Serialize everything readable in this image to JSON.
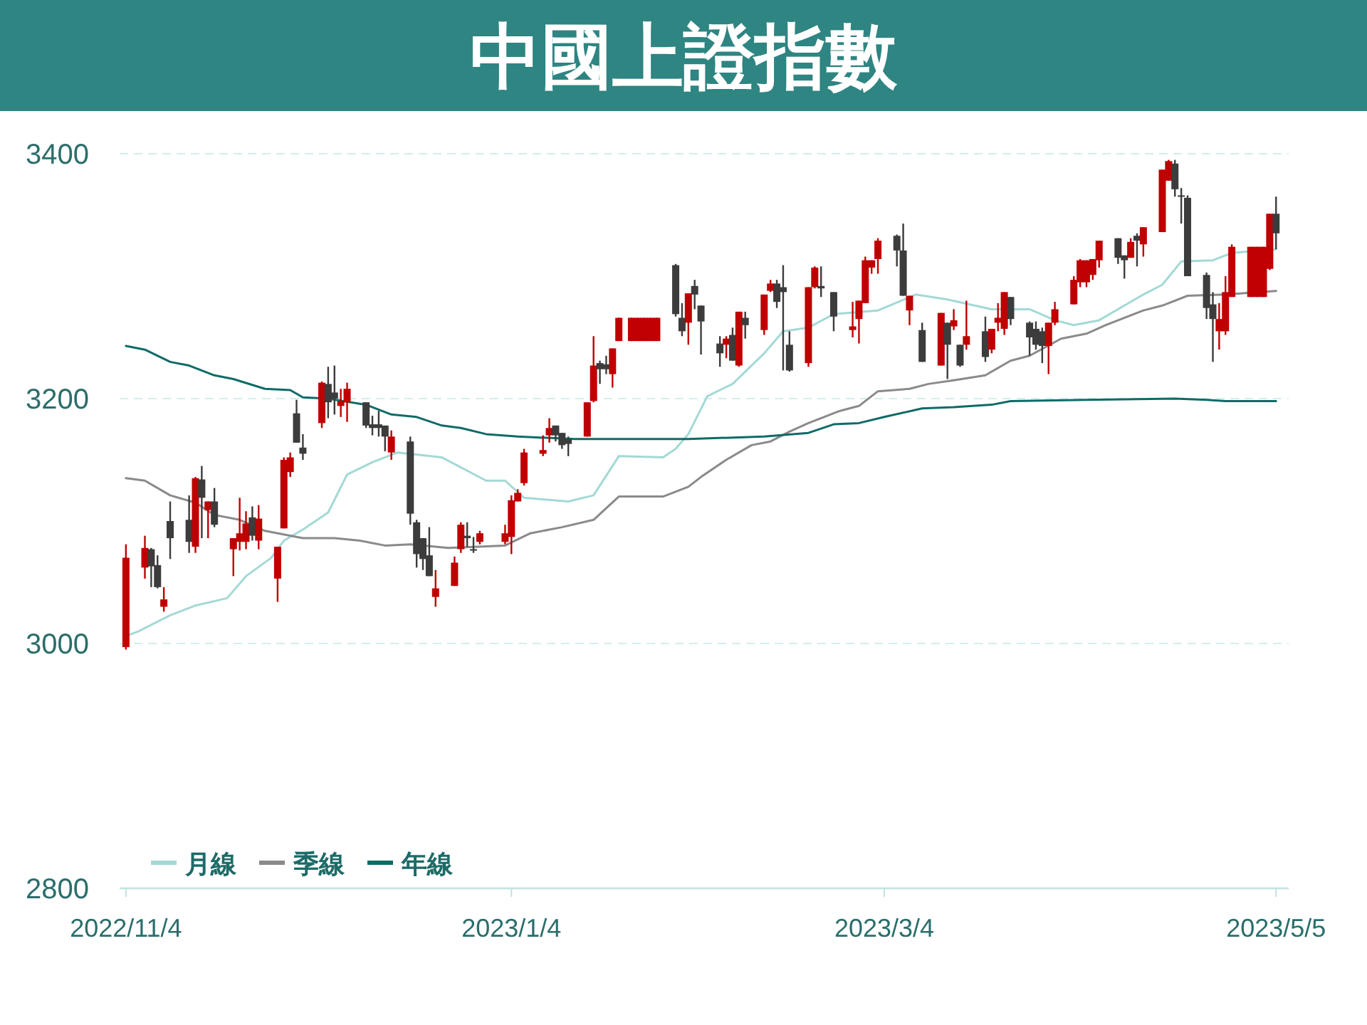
{
  "chart_data": {
    "type": "candlestick",
    "title": "中國上證指數",
    "xlim": [
      "2022-11-03",
      "2023-05-07"
    ],
    "xticks": [
      {
        "value": "2022-11-04",
        "label": "2022/11/4"
      },
      {
        "value": "2023-01-04",
        "label": "2023/1/4"
      },
      {
        "value": "2023-03-04",
        "label": "2023/3/4"
      },
      {
        "value": "2023-05-05",
        "label": "2023/5/5"
      }
    ],
    "ylim": [
      2800,
      3400
    ],
    "yticks": [
      2800,
      3000,
      3200,
      3400
    ],
    "grid": "y",
    "legend": "bottom left",
    "series": [
      {
        "type": "candlestick",
        "x": [
          "2022-11-04",
          "2022-11-07",
          "2022-11-08",
          "2022-11-09",
          "2022-11-10",
          "2022-11-11",
          "2022-11-14",
          "2022-11-15",
          "2022-11-16",
          "2022-11-17",
          "2022-11-18",
          "2022-11-21",
          "2022-11-22",
          "2022-11-23",
          "2022-11-24",
          "2022-11-25",
          "2022-11-28",
          "2022-11-29",
          "2022-11-30",
          "2022-12-01",
          "2022-12-02",
          "2022-12-05",
          "2022-12-06",
          "2022-12-07",
          "2022-12-08",
          "2022-12-09",
          "2022-12-12",
          "2022-12-13",
          "2022-12-14",
          "2022-12-15",
          "2022-12-16",
          "2022-12-19",
          "2022-12-20",
          "2022-12-21",
          "2022-12-22",
          "2022-12-23",
          "2022-12-26",
          "2022-12-27",
          "2022-12-28",
          "2022-12-29",
          "2022-12-30",
          "2023-01-03",
          "2023-01-04",
          "2023-01-05",
          "2023-01-06",
          "2023-01-09",
          "2023-01-10",
          "2023-01-11",
          "2023-01-12",
          "2023-01-13",
          "2023-01-16",
          "2023-01-17",
          "2023-01-18",
          "2023-01-19",
          "2023-01-20",
          "2023-01-21",
          "2023-01-23",
          "2023-01-24",
          "2023-01-25",
          "2023-01-26",
          "2023-01-27",
          "2023-01-30",
          "2023-01-31",
          "2023-02-01",
          "2023-02-02",
          "2023-02-03",
          "2023-02-06",
          "2023-02-07",
          "2023-02-08",
          "2023-02-09",
          "2023-02-10",
          "2023-02-13",
          "2023-02-14",
          "2023-02-15",
          "2023-02-16",
          "2023-02-17",
          "2023-02-20",
          "2023-02-21",
          "2023-02-22",
          "2023-02-24",
          "2023-02-27",
          "2023-02-28",
          "2023-03-01",
          "2023-03-02",
          "2023-03-03",
          "2023-03-06",
          "2023-03-07",
          "2023-03-08",
          "2023-03-10",
          "2023-03-13",
          "2023-03-14",
          "2023-03-15",
          "2023-03-16",
          "2023-03-17",
          "2023-03-20",
          "2023-03-21",
          "2023-03-22",
          "2023-03-23",
          "2023-03-24",
          "2023-03-27",
          "2023-03-28",
          "2023-03-29",
          "2023-03-30",
          "2023-03-31",
          "2023-04-03",
          "2023-04-04",
          "2023-04-05",
          "2023-04-06",
          "2023-04-07",
          "2023-04-10",
          "2023-04-11",
          "2023-04-12",
          "2023-04-13",
          "2023-04-14",
          "2023-04-17",
          "2023-04-18",
          "2023-04-19",
          "2023-04-20",
          "2023-04-21",
          "2023-04-24",
          "2023-04-25",
          "2023-04-26",
          "2023-04-27",
          "2023-04-28",
          "2023-05-01",
          "2023-05-02",
          "2023-05-03",
          "2023-05-04",
          "2023-05-05"
        ],
        "ohlc": [
          [
            2997,
            3081,
            2995,
            3070
          ],
          [
            3062,
            3088,
            3053,
            3078
          ],
          [
            3077,
            3078,
            3046,
            3063
          ],
          [
            3064,
            3072,
            3045,
            3046
          ],
          [
            3030,
            3046,
            3026,
            3036
          ],
          [
            3100,
            3116,
            3069,
            3086
          ],
          [
            3101,
            3121,
            3074,
            3083
          ],
          [
            3079,
            3136,
            3074,
            3135
          ],
          [
            3134,
            3145,
            3086,
            3119
          ],
          [
            3109,
            3116,
            3086,
            3116
          ],
          [
            3116,
            3127,
            3095,
            3097
          ],
          [
            3077,
            3086,
            3055,
            3086
          ],
          [
            3083,
            3119,
            3076,
            3090
          ],
          [
            3083,
            3108,
            3077,
            3098
          ],
          [
            3103,
            3112,
            3084,
            3088
          ],
          [
            3084,
            3113,
            3077,
            3102
          ],
          [
            3053,
            3079,
            3034,
            3079
          ],
          [
            3094,
            3152,
            3094,
            3150
          ],
          [
            3140,
            3156,
            3136,
            3152
          ],
          [
            3188,
            3199,
            3164,
            3164
          ],
          [
            3160,
            3171,
            3150,
            3155
          ],
          [
            3180,
            3214,
            3176,
            3213
          ],
          [
            3212,
            3226,
            3184,
            3197
          ],
          [
            3205,
            3227,
            3187,
            3200
          ],
          [
            3194,
            3208,
            3185,
            3198
          ],
          [
            3197,
            3213,
            3181,
            3208
          ],
          [
            3197,
            3197,
            3176,
            3178
          ],
          [
            3179,
            3186,
            3170,
            3176
          ],
          [
            3179,
            3190,
            3169,
            3176
          ],
          [
            3178,
            3178,
            3157,
            3169
          ],
          [
            3156,
            3174,
            3150,
            3169
          ],
          [
            3165,
            3169,
            3097,
            3106
          ],
          [
            3099,
            3101,
            3062,
            3073
          ],
          [
            3086,
            3086,
            3060,
            3069
          ],
          [
            3072,
            3095,
            3055,
            3055
          ],
          [
            3038,
            3060,
            3030,
            3045
          ],
          [
            3047,
            3071,
            3047,
            3066
          ],
          [
            3077,
            3099,
            3074,
            3097
          ],
          [
            3088,
            3099,
            3079,
            3086
          ],
          [
            3077,
            3087,
            3074,
            3076
          ],
          [
            3083,
            3092,
            3081,
            3090
          ],
          [
            3083,
            3097,
            3081,
            3090
          ],
          [
            3087,
            3121,
            3073,
            3117
          ],
          [
            3116,
            3126,
            3116,
            3123
          ],
          [
            3131,
            3159,
            3129,
            3156
          ],
          [
            3155,
            3170,
            3153,
            3158
          ],
          [
            3170,
            3184,
            3164,
            3176
          ],
          [
            3178,
            3178,
            3165,
            3170
          ],
          [
            3172,
            3172,
            3159,
            3162
          ],
          [
            3167,
            3169,
            3153,
            3163
          ],
          [
            3169,
            3197,
            3169,
            3197
          ],
          [
            3198,
            3251,
            3197,
            3227
          ],
          [
            3229,
            3231,
            3212,
            3224
          ],
          [
            3228,
            3235,
            3220,
            3224
          ],
          [
            3220,
            3241,
            3209,
            3241
          ],
          [
            3247,
            3266,
            3247,
            3266
          ],
          [
            3247,
            3266,
            3247,
            3266
          ],
          [
            3247,
            3266,
            3247,
            3266
          ],
          [
            3247,
            3266,
            3247,
            3266
          ],
          [
            3247,
            3266,
            3247,
            3266
          ],
          [
            3247,
            3266,
            3247,
            3266
          ],
          [
            3309,
            3310,
            3267,
            3269
          ],
          [
            3266,
            3278,
            3251,
            3255
          ],
          [
            3262,
            3286,
            3244,
            3286
          ],
          [
            3292,
            3297,
            3273,
            3285
          ],
          [
            3276,
            3276,
            3236,
            3263
          ],
          [
            3245,
            3251,
            3226,
            3237
          ],
          [
            3244,
            3251,
            3233,
            3249
          ],
          [
            3252,
            3258,
            3231,
            3231
          ],
          [
            3227,
            3271,
            3226,
            3271
          ],
          [
            3266,
            3271,
            3249,
            3260
          ],
          [
            3256,
            3285,
            3252,
            3285
          ],
          [
            3288,
            3297,
            3287,
            3294
          ],
          [
            3294,
            3297,
            3274,
            3279
          ],
          [
            3291,
            3309,
            3223,
            3287
          ],
          [
            3244,
            3255,
            3222,
            3223
          ],
          [
            3229,
            3291,
            3226,
            3291
          ],
          [
            3291,
            3308,
            3290,
            3307
          ],
          [
            3292,
            3308,
            3283,
            3290
          ],
          [
            3287,
            3287,
            3255,
            3267
          ],
          [
            3256,
            3279,
            3250,
            3259
          ],
          [
            3265,
            3280,
            3245,
            3280
          ],
          [
            3278,
            3316,
            3278,
            3313
          ],
          [
            3307,
            3313,
            3302,
            3313
          ],
          [
            3314,
            3331,
            3302,
            3329
          ],
          [
            3333,
            3334,
            3308,
            3321
          ],
          [
            3321,
            3343,
            3284,
            3284
          ],
          [
            3272,
            3284,
            3260,
            3284
          ],
          [
            3256,
            3262,
            3230,
            3230
          ],
          [
            3227,
            3270,
            3227,
            3270
          ],
          [
            3262,
            3262,
            3216,
            3244
          ],
          [
            3259,
            3273,
            3256,
            3264
          ],
          [
            3244,
            3244,
            3226,
            3227
          ],
          [
            3244,
            3280,
            3240,
            3251
          ],
          [
            3255,
            3267,
            3230,
            3234
          ],
          [
            3240,
            3257,
            3237,
            3257
          ],
          [
            3262,
            3278,
            3255,
            3266
          ],
          [
            3257,
            3287,
            3252,
            3287
          ],
          [
            3283,
            3283,
            3260,
            3265
          ],
          [
            3262,
            3263,
            3235,
            3250
          ],
          [
            3257,
            3263,
            3240,
            3244
          ],
          [
            3255,
            3258,
            3229,
            3243
          ],
          [
            3243,
            3262,
            3220,
            3262
          ],
          [
            3262,
            3279,
            3260,
            3273
          ],
          [
            3277,
            3300,
            3277,
            3297
          ],
          [
            3295,
            3314,
            3291,
            3313
          ],
          [
            3295,
            3313,
            3291,
            3313
          ],
          [
            3301,
            3314,
            3297,
            3314
          ],
          [
            3313,
            3329,
            3307,
            3329
          ],
          [
            3331,
            3331,
            3310,
            3315
          ],
          [
            3317,
            3317,
            3298,
            3313
          ],
          [
            3315,
            3331,
            3315,
            3328
          ],
          [
            3333,
            3335,
            3308,
            3329
          ],
          [
            3326,
            3340,
            3316,
            3340
          ],
          [
            3336,
            3387,
            3336,
            3387
          ],
          [
            3378,
            3395,
            3378,
            3394
          ],
          [
            3392,
            3395,
            3365,
            3371
          ],
          [
            3366,
            3372,
            3343,
            3365
          ],
          [
            3364,
            3366,
            3300,
            3300
          ],
          [
            3301,
            3303,
            3265,
            3274
          ],
          [
            3277,
            3287,
            3230,
            3265
          ],
          [
            3255,
            3278,
            3240,
            3265
          ],
          [
            3255,
            3300,
            3252,
            3287
          ],
          [
            3283,
            3326,
            3283,
            3324
          ],
          [
            3283,
            3324,
            3283,
            3324
          ],
          [
            3283,
            3324,
            3283,
            3324
          ],
          [
            3283,
            3324,
            3283,
            3324
          ],
          [
            3306,
            3351,
            3305,
            3351
          ],
          [
            3351,
            3365,
            3322,
            3335
          ]
        ],
        "colors": [
          "#c00000",
          "#c00000",
          "#3c3c3c",
          "#3c3c3c",
          "#c00000",
          "#3c3c3c",
          "#3c3c3c",
          "#c00000",
          "#3c3c3c",
          "#c00000",
          "#3c3c3c",
          "#c00000",
          "#c00000",
          "#c00000",
          "#3c3c3c",
          "#c00000",
          "#c00000",
          "#c00000",
          "#c00000",
          "#3c3c3c",
          "#3c3c3c",
          "#c00000",
          "#3c3c3c",
          "#3c3c3c",
          "#c00000",
          "#c00000",
          "#3c3c3c",
          "#3c3c3c",
          "#3c3c3c",
          "#3c3c3c",
          "#c00000",
          "#3c3c3c",
          "#3c3c3c",
          "#3c3c3c",
          "#3c3c3c",
          "#c00000",
          "#c00000",
          "#c00000",
          "#3c3c3c",
          "#3c3c3c",
          "#c00000",
          "#c00000",
          "#c00000",
          "#c00000",
          "#c00000",
          "#c00000",
          "#c00000",
          "#3c3c3c",
          "#3c3c3c",
          "#3c3c3c",
          "#c00000",
          "#c00000",
          "#3c3c3c",
          "#3c3c3c",
          "#c00000",
          "#c00000",
          "#c00000",
          "#c00000",
          "#c00000",
          "#c00000",
          "#c00000",
          "#3c3c3c",
          "#3c3c3c",
          "#c00000",
          "#3c3c3c",
          "#3c3c3c",
          "#3c3c3c",
          "#c00000",
          "#3c3c3c",
          "#c00000",
          "#3c3c3c",
          "#c00000",
          "#c00000",
          "#3c3c3c",
          "#3c3c3c",
          "#3c3c3c",
          "#c00000",
          "#c00000",
          "#3c3c3c",
          "#3c3c3c",
          "#c00000",
          "#c00000",
          "#c00000",
          "#c00000",
          "#c00000",
          "#3c3c3c",
          "#3c3c3c",
          "#c00000",
          "#3c3c3c",
          "#c00000",
          "#3c3c3c",
          "#c00000",
          "#3c3c3c",
          "#c00000",
          "#3c3c3c",
          "#c00000",
          "#c00000",
          "#c00000",
          "#3c3c3c",
          "#3c3c3c",
          "#3c3c3c",
          "#3c3c3c",
          "#c00000",
          "#c00000",
          "#c00000",
          "#c00000",
          "#c00000",
          "#c00000",
          "#c00000",
          "#3c3c3c",
          "#3c3c3c",
          "#c00000",
          "#3c3c3c",
          "#c00000",
          "#c00000",
          "#c00000",
          "#3c3c3c",
          "#3c3c3c",
          "#3c3c3c",
          "#3c3c3c",
          "#3c3c3c",
          "#c00000",
          "#c00000",
          "#c00000",
          "#c00000",
          "#c00000",
          "#c00000",
          "#c00000",
          "#3c3c3c"
        ]
      },
      {
        "type": "line",
        "name": "月線",
        "color": "#a3d9d6",
        "x": [
          "2022-11-04",
          "2022-11-06",
          "2022-11-11",
          "2022-11-15",
          "2022-11-20",
          "2022-11-23",
          "2022-11-27",
          "2022-11-29",
          "2022-12-02",
          "2022-12-06",
          "2022-12-09",
          "2022-12-13",
          "2022-12-17",
          "2022-12-24",
          "2022-12-31",
          "2023-01-03",
          "2023-01-06",
          "2023-01-13",
          "2023-01-17",
          "2023-01-21",
          "2023-01-28",
          "2023-01-30",
          "2023-02-01",
          "2023-02-04",
          "2023-02-08",
          "2023-02-13",
          "2023-02-16",
          "2023-02-20",
          "2023-02-24",
          "2023-03-03",
          "2023-03-09",
          "2023-03-14",
          "2023-03-21",
          "2023-03-27",
          "2023-03-31",
          "2023-04-03",
          "2023-04-07",
          "2023-04-14",
          "2023-04-17",
          "2023-04-20",
          "2023-04-25",
          "2023-04-28",
          "2023-05-05"
        ],
        "values": [
          3006,
          3010,
          3023,
          3031,
          3037,
          3055,
          3070,
          3084,
          3093,
          3107,
          3138,
          3148,
          3156,
          3152,
          3133,
          3133,
          3119,
          3116,
          3121,
          3153,
          3152,
          3159,
          3171,
          3202,
          3212,
          3237,
          3255,
          3258,
          3269,
          3272,
          3285,
          3281,
          3273,
          3273,
          3264,
          3260,
          3264,
          3285,
          3293,
          3312,
          3313,
          3319,
          3322
        ]
      },
      {
        "type": "line",
        "name": "季線",
        "color": "#8a8a8a",
        "x": [
          "2022-11-04",
          "2022-11-07",
          "2022-11-11",
          "2022-11-15",
          "2022-11-18",
          "2022-11-22",
          "2022-11-26",
          "2022-12-02",
          "2022-12-07",
          "2022-12-11",
          "2022-12-15",
          "2022-12-19",
          "2022-12-25",
          "2023-01-03",
          "2023-01-07",
          "2023-01-12",
          "2023-01-17",
          "2023-01-21",
          "2023-01-28",
          "2023-02-01",
          "2023-02-03",
          "2023-02-07",
          "2023-02-11",
          "2023-02-14",
          "2023-02-17",
          "2023-02-20",
          "2023-02-25",
          "2023-02-28",
          "2023-03-03",
          "2023-03-08",
          "2023-03-11",
          "2023-03-15",
          "2023-03-20",
          "2023-03-24",
          "2023-03-27",
          "2023-04-01",
          "2023-04-05",
          "2023-04-08",
          "2023-04-14",
          "2023-04-17",
          "2023-04-21",
          "2023-04-27",
          "2023-05-05"
        ],
        "values": [
          3135,
          3133,
          3121,
          3115,
          3105,
          3101,
          3092,
          3086,
          3086,
          3084,
          3080,
          3081,
          3078,
          3080,
          3090,
          3095,
          3101,
          3120,
          3120,
          3128,
          3136,
          3150,
          3162,
          3165,
          3173,
          3180,
          3190,
          3194,
          3206,
          3208,
          3212,
          3215,
          3219,
          3231,
          3235,
          3249,
          3253,
          3260,
          3272,
          3276,
          3284,
          3285,
          3288
        ]
      },
      {
        "type": "line",
        "name": "年線",
        "color": "#0e6b67",
        "x": [
          "2022-11-04",
          "2022-11-07",
          "2022-11-11",
          "2022-11-14",
          "2022-11-18",
          "2022-11-21",
          "2022-11-26",
          "2022-11-30",
          "2022-12-02",
          "2022-12-06",
          "2022-12-12",
          "2022-12-16",
          "2022-12-20",
          "2022-12-24",
          "2022-12-27",
          "2022-12-31",
          "2023-01-05",
          "2023-01-14",
          "2023-02-01",
          "2023-02-13",
          "2023-02-20",
          "2023-02-24",
          "2023-02-28",
          "2023-03-04",
          "2023-03-10",
          "2023-03-15",
          "2023-03-21",
          "2023-03-24",
          "2023-04-05",
          "2023-04-19",
          "2023-04-24",
          "2023-04-27",
          "2023-05-05"
        ],
        "values": [
          3243,
          3240,
          3230,
          3227,
          3219,
          3216,
          3208,
          3207,
          3201,
          3200,
          3195,
          3187,
          3185,
          3178,
          3176,
          3171,
          3169,
          3167,
          3167,
          3169,
          3172,
          3179,
          3180,
          3185,
          3192,
          3193,
          3195,
          3198,
          3199,
          3200,
          3199,
          3198,
          3198
        ]
      }
    ]
  }
}
